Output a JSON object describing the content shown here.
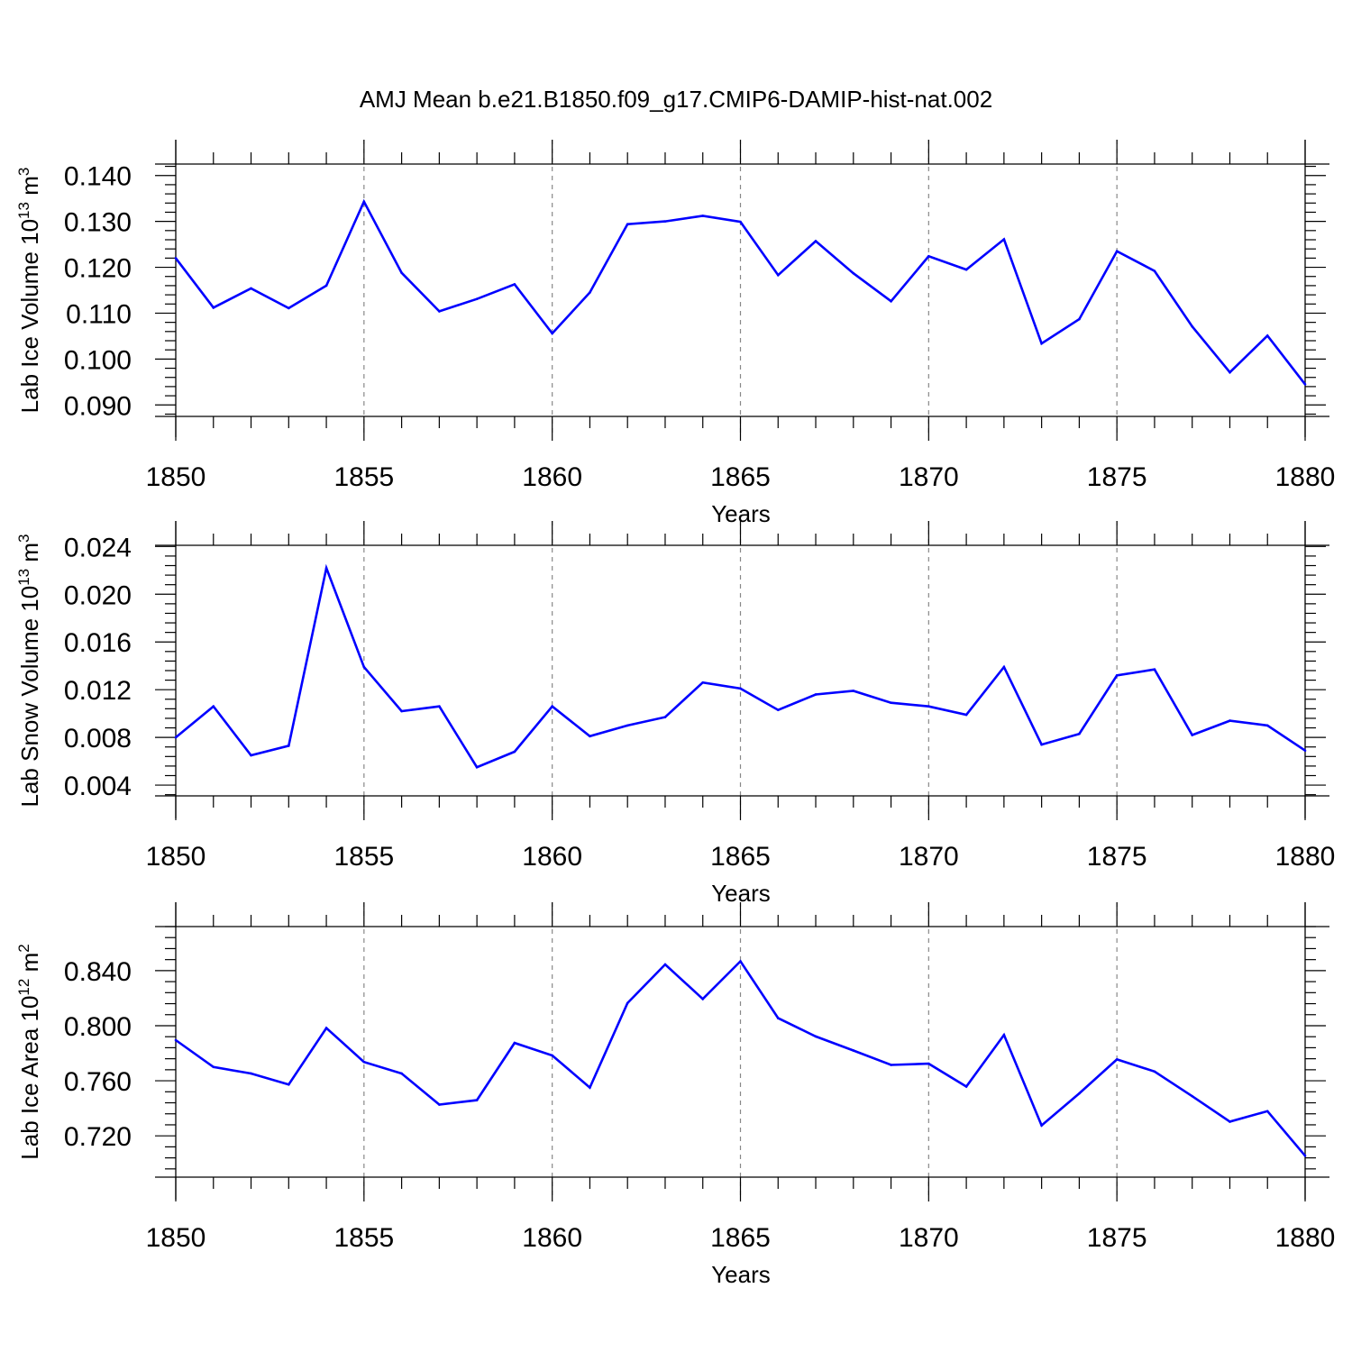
{
  "title": "AMJ Mean b.e21.B1850.f09_g17.CMIP6-DAMIP-hist-nat.002",
  "line_color": "#0000ff",
  "chart_data": [
    {
      "type": "line",
      "xlabel": "Years",
      "ylabel_prefix": "Lab Ice Volume 10",
      "ylabel_exp": "13",
      "ylabel_unit": " m",
      "ylabel_unit_exp": "3",
      "xlim": [
        1850,
        1880
      ],
      "ylim": [
        0.0875,
        0.1425
      ],
      "yticks": [
        "0.090",
        "0.100",
        "0.110",
        "0.120",
        "0.130",
        "0.140"
      ],
      "xticks": [
        "1850",
        "1855",
        "1860",
        "1865",
        "1870",
        "1875",
        "1880"
      ],
      "x": [
        1850,
        1851,
        1852,
        1853,
        1854,
        1855,
        1856,
        1857,
        1858,
        1859,
        1860,
        1861,
        1862,
        1863,
        1864,
        1865,
        1866,
        1867,
        1868,
        1869,
        1870,
        1871,
        1872,
        1873,
        1874,
        1875,
        1876,
        1877,
        1878,
        1879,
        1880
      ],
      "y": [
        0.122,
        0.1112,
        0.1154,
        0.1111,
        0.116,
        0.1343,
        0.1188,
        0.1104,
        0.1131,
        0.1163,
        0.1056,
        0.1145,
        0.1294,
        0.13,
        0.1312,
        0.1299,
        0.1183,
        0.1257,
        0.1187,
        0.1126,
        0.1224,
        0.1195,
        0.1261,
        0.1034,
        0.1087,
        0.1235,
        0.1192,
        0.1071,
        0.0971,
        0.1051,
        0.0945
      ]
    },
    {
      "type": "line",
      "xlabel": "Years",
      "ylabel_prefix": "Lab Snow Volume 10",
      "ylabel_exp": "13",
      "ylabel_unit": " m",
      "ylabel_unit_exp": "3",
      "xlim": [
        1850,
        1880
      ],
      "ylim": [
        0.0031,
        0.0241
      ],
      "yticks": [
        "0.004",
        "0.008",
        "0.012",
        "0.016",
        "0.020",
        "0.024"
      ],
      "xticks": [
        "1850",
        "1855",
        "1860",
        "1865",
        "1870",
        "1875",
        "1880"
      ],
      "x": [
        1850,
        1851,
        1852,
        1853,
        1854,
        1855,
        1856,
        1857,
        1858,
        1859,
        1860,
        1861,
        1862,
        1863,
        1864,
        1865,
        1866,
        1867,
        1868,
        1869,
        1870,
        1871,
        1872,
        1873,
        1874,
        1875,
        1876,
        1877,
        1878,
        1879,
        1880
      ],
      "y": [
        0.008,
        0.0106,
        0.0065,
        0.0073,
        0.0222,
        0.0139,
        0.0102,
        0.0106,
        0.0055,
        0.0068,
        0.0106,
        0.0081,
        0.009,
        0.0097,
        0.0126,
        0.0121,
        0.0103,
        0.0116,
        0.0119,
        0.0109,
        0.0106,
        0.0099,
        0.0139,
        0.0074,
        0.0083,
        0.0132,
        0.0137,
        0.0082,
        0.0094,
        0.009,
        0.0069
      ]
    },
    {
      "type": "line",
      "xlabel": "Years",
      "ylabel_prefix": "Lab Ice Area 10",
      "ylabel_exp": "12",
      "ylabel_unit": " m",
      "ylabel_unit_exp": "2",
      "xlim": [
        1850,
        1880
      ],
      "ylim": [
        0.69,
        0.872
      ],
      "yticks": [
        "0.720",
        "0.760",
        "0.800",
        "0.840"
      ],
      "xticks": [
        "1850",
        "1855",
        "1860",
        "1865",
        "1870",
        "1875",
        "1880"
      ],
      "x": [
        1850,
        1851,
        1852,
        1853,
        1854,
        1855,
        1856,
        1857,
        1858,
        1859,
        1860,
        1861,
        1862,
        1863,
        1864,
        1865,
        1866,
        1867,
        1868,
        1869,
        1870,
        1871,
        1872,
        1873,
        1874,
        1875,
        1876,
        1877,
        1878,
        1879,
        1880
      ],
      "y": [
        0.7895,
        0.77,
        0.7653,
        0.7573,
        0.7983,
        0.7737,
        0.7653,
        0.7427,
        0.7459,
        0.7875,
        0.7784,
        0.7551,
        0.8164,
        0.8445,
        0.8194,
        0.8468,
        0.8055,
        0.7922,
        0.782,
        0.7715,
        0.7724,
        0.7558,
        0.7933,
        0.7276,
        0.7508,
        0.7755,
        0.7667,
        0.7488,
        0.7303,
        0.7379,
        0.7055
      ]
    }
  ]
}
